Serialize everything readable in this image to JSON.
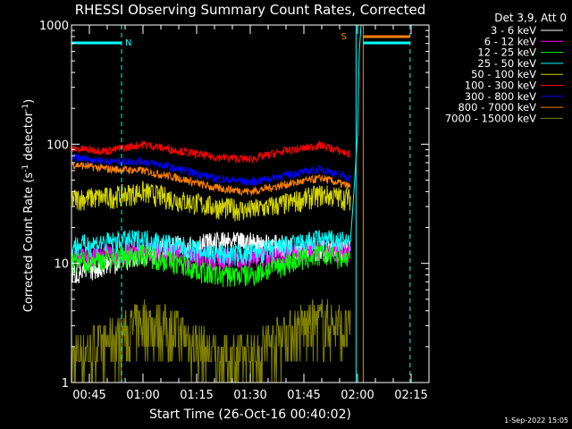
{
  "chart_data": {
    "type": "line",
    "title": "RHESSI Observing Summary Count Rates, Corrected",
    "xlabel": "Start Time (26-Oct-16 00:40:02)",
    "ylabel_parts": [
      "Corrected Count Rate (s",
      "-1",
      " detector",
      "-1",
      ")"
    ],
    "yscale": "log",
    "ylim": [
      1,
      1000
    ],
    "xlim_minutes_after_0040": [
      0,
      100
    ],
    "x_ticks": [
      {
        "label": "00:45",
        "min": 5
      },
      {
        "label": "01:00",
        "min": 20
      },
      {
        "label": "01:15",
        "min": 35
      },
      {
        "label": "01:30",
        "min": 50
      },
      {
        "label": "01:45",
        "min": 65
      },
      {
        "label": "02:00",
        "min": 80
      },
      {
        "label": "02:15",
        "min": 95
      }
    ],
    "y_ticks": [
      {
        "label": "1",
        "value": 1
      },
      {
        "label": "10",
        "value": 10
      },
      {
        "label": "100",
        "value": 100
      },
      {
        "label": "1000",
        "value": 1000
      }
    ],
    "legend_title": "Det 3,9, Att 0",
    "series": [
      {
        "name": "3 - 6 keV",
        "color": "#ffffff",
        "x": [
          0,
          10,
          20,
          30,
          40,
          50,
          60,
          70,
          78
        ],
        "values": [
          8,
          10,
          12,
          14,
          15,
          15,
          14,
          13,
          13
        ]
      },
      {
        "name": "6 - 12 keV",
        "color": "#ff00ff",
        "x": [
          0,
          10,
          20,
          30,
          40,
          50,
          60,
          70,
          78
        ],
        "values": [
          11,
          12,
          13,
          12,
          11,
          11,
          12,
          13,
          13
        ]
      },
      {
        "name": "12 - 25 keV",
        "color": "#00ff00",
        "x": [
          0,
          10,
          20,
          30,
          40,
          50,
          60,
          70,
          78
        ],
        "values": [
          10,
          11,
          12,
          10,
          8,
          8,
          10,
          12,
          11
        ]
      },
      {
        "name": "25 - 50 keV",
        "color": "#00ffff",
        "x": [
          0,
          10,
          20,
          30,
          40,
          50,
          60,
          70,
          78
        ],
        "values": [
          14,
          15,
          16,
          14,
          12,
          12,
          14,
          16,
          15
        ]
      },
      {
        "name": "50 - 100 keV",
        "color": "#d4d400",
        "x": [
          0,
          10,
          20,
          30,
          40,
          50,
          60,
          70,
          78
        ],
        "values": [
          35,
          36,
          40,
          34,
          30,
          28,
          32,
          38,
          35
        ]
      },
      {
        "name": "100 - 300 keV",
        "color": "#ff0000",
        "x": [
          0,
          10,
          20,
          30,
          40,
          50,
          60,
          70,
          78
        ],
        "values": [
          92,
          88,
          100,
          88,
          78,
          75,
          88,
          98,
          82
        ]
      },
      {
        "name": "300 - 800 keV",
        "color": "#0000ff",
        "x": [
          0,
          10,
          20,
          30,
          40,
          50,
          60,
          70,
          78
        ],
        "values": [
          78,
          72,
          72,
          62,
          52,
          48,
          55,
          62,
          52
        ]
      },
      {
        "name": "800 - 7000 keV",
        "color": "#ff8000",
        "x": [
          0,
          10,
          20,
          30,
          40,
          50,
          60,
          70,
          78
        ],
        "values": [
          68,
          62,
          60,
          52,
          43,
          40,
          46,
          52,
          44
        ]
      },
      {
        "name": "7000 - 15000 keV",
        "color": "#808000",
        "x": [
          0,
          10,
          20,
          30,
          40,
          50,
          60,
          70,
          78
        ],
        "values": [
          1.5,
          2,
          3,
          2.5,
          1.5,
          1.5,
          2.5,
          3,
          2.5
        ]
      }
    ],
    "annotations": [
      {
        "text": "N",
        "color": "#00ffff"
      },
      {
        "text": "S",
        "color": "#ff8000"
      }
    ],
    "footer_timestamp": "1-Sep-2022 15:05"
  }
}
